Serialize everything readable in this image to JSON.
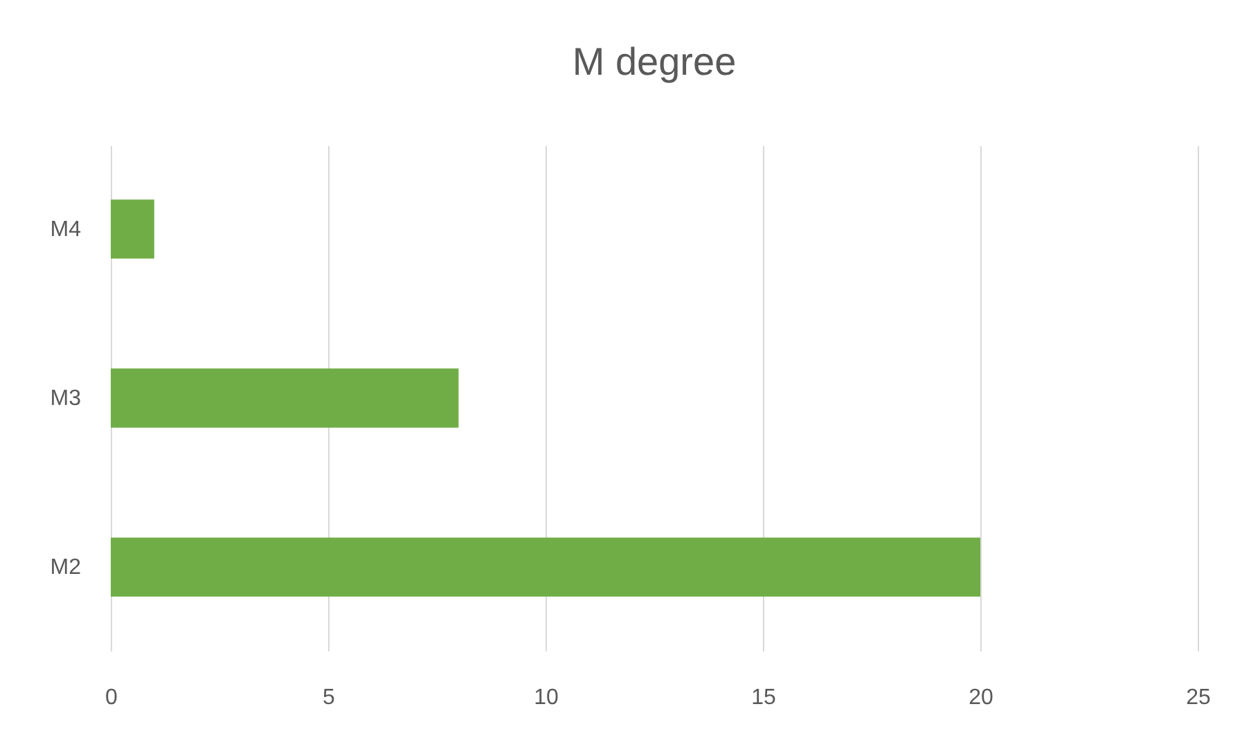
{
  "chart_data": {
    "type": "bar",
    "orientation": "horizontal",
    "title": "M degree",
    "categories": [
      "M4",
      "M3",
      "M2"
    ],
    "values": [
      1,
      8,
      20
    ],
    "color": "#70ad47",
    "xlim": [
      0,
      25
    ],
    "xticks": [
      0,
      5,
      10,
      15,
      20,
      25
    ],
    "grid": "x"
  }
}
